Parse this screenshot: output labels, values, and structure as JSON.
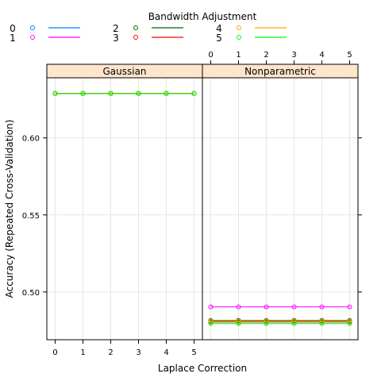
{
  "chart_data": {
    "type": "line",
    "ylabel": "Accuracy (Repeated Cross-Validation)",
    "xlabel": "Laplace Correction",
    "x": [
      0,
      1,
      2,
      3,
      4,
      5
    ],
    "xlim": [
      -0.3,
      5.3
    ],
    "ylim": [
      0.469,
      0.639
    ],
    "yticks": [
      0.5,
      0.55,
      0.6
    ],
    "ytick_labels": [
      "0.50",
      "0.55",
      "0.60"
    ],
    "grid": true,
    "legend": {
      "title": "Bandwidth Adjustment",
      "placement": "top",
      "entries": [
        {
          "label": "0",
          "color": "#0080ff"
        },
        {
          "label": "1",
          "color": "#ff00ff"
        },
        {
          "label": "2",
          "color": "#006400"
        },
        {
          "label": "3",
          "color": "#ff0000"
        },
        {
          "label": "4",
          "color": "#ffa500"
        },
        {
          "label": "5",
          "color": "#00ff00"
        }
      ]
    },
    "panels": [
      {
        "title": "Gaussian",
        "series": [
          {
            "name": "0",
            "values": [
              0.6288,
              0.6288,
              0.6288,
              0.6288,
              0.6288,
              0.6288
            ]
          },
          {
            "name": "1",
            "values": [
              0.6288,
              0.6288,
              0.6288,
              0.6288,
              0.6288,
              0.6288
            ]
          },
          {
            "name": "2",
            "values": [
              0.6288,
              0.6288,
              0.6288,
              0.6288,
              0.6288,
              0.6288
            ]
          },
          {
            "name": "3",
            "values": [
              0.6288,
              0.6288,
              0.6288,
              0.6288,
              0.6288,
              0.6288
            ]
          },
          {
            "name": "4",
            "values": [
              0.6288,
              0.6288,
              0.6288,
              0.6288,
              0.6288,
              0.6288
            ]
          },
          {
            "name": "5",
            "values": [
              0.6288,
              0.6288,
              0.6288,
              0.6288,
              0.6288,
              0.6288
            ]
          }
        ]
      },
      {
        "title": "Nonparametric",
        "series": [
          {
            "name": "0",
            "values": [
              0.4805,
              0.4805,
              0.4805,
              0.4805,
              0.4805,
              0.4805
            ]
          },
          {
            "name": "1",
            "values": [
              0.4903,
              0.4903,
              0.4903,
              0.4903,
              0.4903,
              0.4903
            ]
          },
          {
            "name": "2",
            "values": [
              0.4815,
              0.4815,
              0.4815,
              0.4815,
              0.4815,
              0.4815
            ]
          },
          {
            "name": "3",
            "values": [
              0.4805,
              0.4805,
              0.4805,
              0.4805,
              0.4805,
              0.4805
            ]
          },
          {
            "name": "4",
            "values": [
              0.481,
              0.481,
              0.481,
              0.481,
              0.481,
              0.481
            ]
          },
          {
            "name": "5",
            "values": [
              0.4795,
              0.4795,
              0.4795,
              0.4795,
              0.4795,
              0.4795
            ]
          }
        ]
      }
    ]
  }
}
